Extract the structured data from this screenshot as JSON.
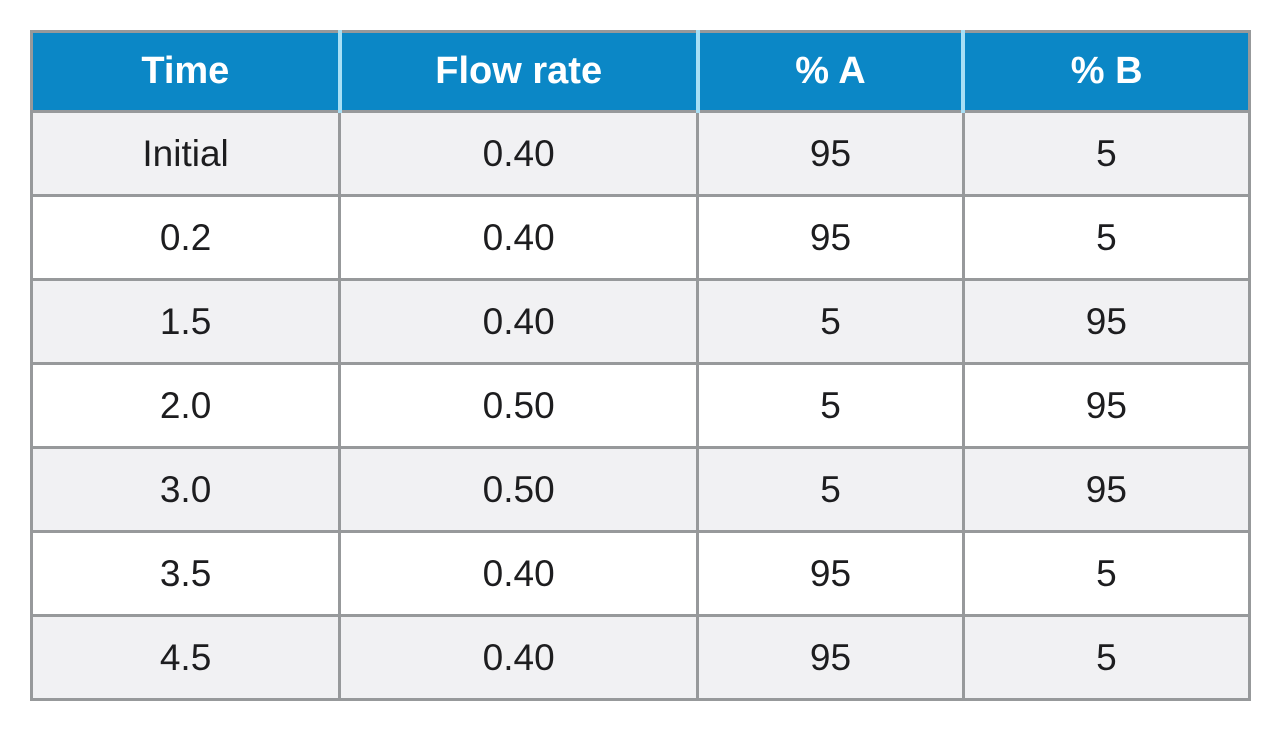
{
  "chart_data": {
    "type": "table",
    "columns": [
      "Time",
      "Flow rate",
      "% A",
      "% B"
    ],
    "rows": [
      [
        "Initial",
        "0.40",
        "95",
        "5"
      ],
      [
        "0.2",
        "0.40",
        "95",
        "5"
      ],
      [
        "1.5",
        "0.40",
        "5",
        "95"
      ],
      [
        "2.0",
        "0.50",
        "5",
        "95"
      ],
      [
        "3.0",
        "0.50",
        "5",
        "95"
      ],
      [
        "3.5",
        "0.40",
        "95",
        "5"
      ],
      [
        "4.5",
        "0.40",
        "95",
        "5"
      ]
    ],
    "layout": {
      "column_width_percents": [
        25.3,
        29.4,
        21.8,
        23.5
      ],
      "alternating_rows_start": "shaded",
      "grid": "on"
    }
  },
  "colors": {
    "header_bg": "#0b87c6",
    "header_text": "#ffffff",
    "header_divider": "#a8dff5",
    "row_bg": "#ffffff",
    "row_alt_bg": "#f1f1f3",
    "border": "#97999b",
    "text": "#1d1d1f"
  }
}
